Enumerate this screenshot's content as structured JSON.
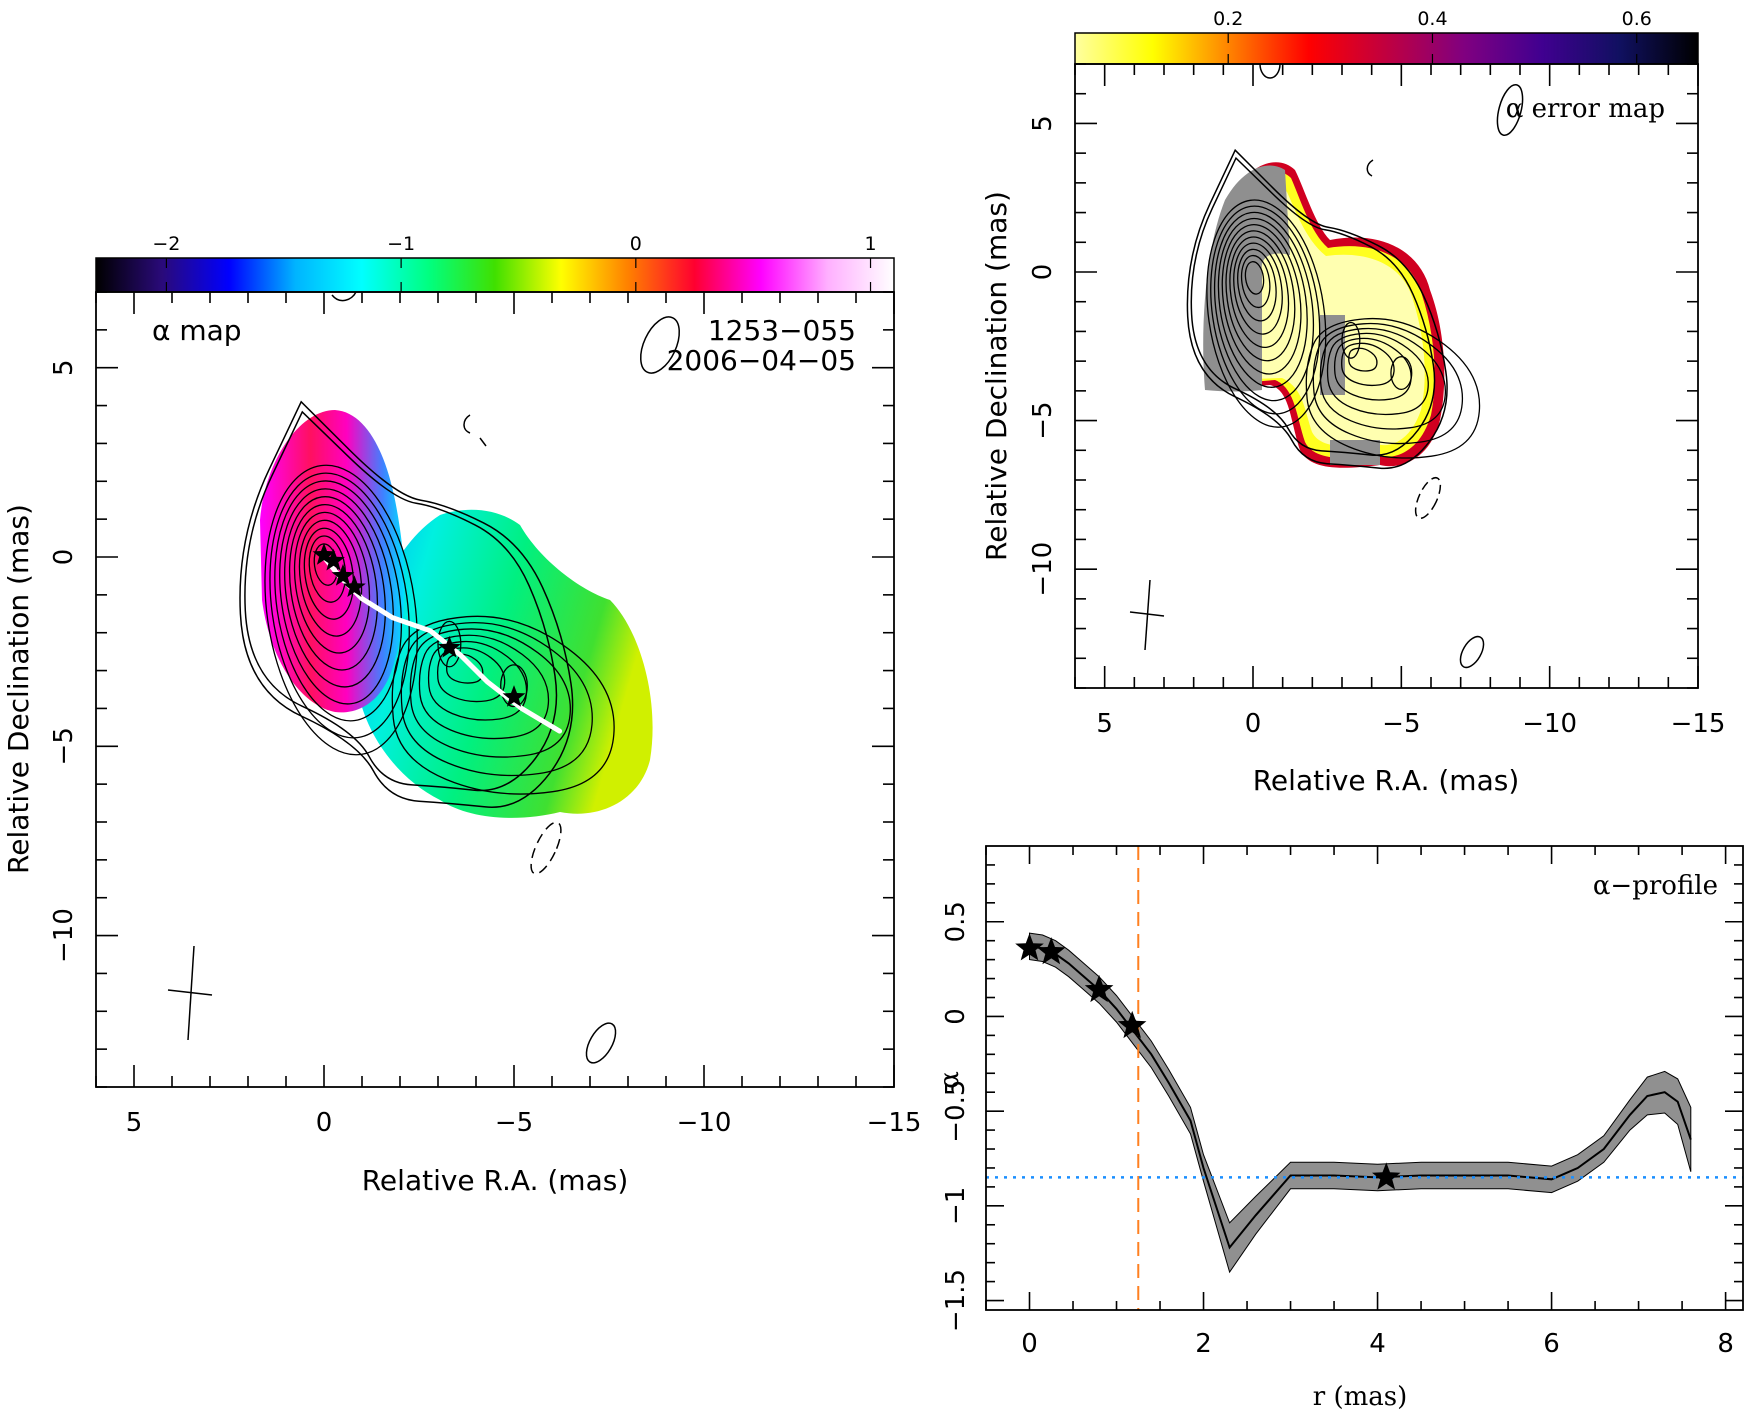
{
  "chart_data": [
    {
      "type": "heatmap",
      "panel": "alpha-map",
      "annotation": "α map",
      "source_name": "1253−055",
      "epoch": "2006−04−05",
      "xlabel": "Relative R.A. (mas)",
      "ylabel": "Relative Declination (mas)",
      "xlim": [
        6,
        -15
      ],
      "ylim": [
        -14,
        7
      ],
      "xticks": [
        5,
        0,
        -5,
        -10,
        -15
      ],
      "xtick_labels": [
        "5",
        "0",
        "−5",
        "−10",
        "−15"
      ],
      "yticks": [
        5,
        0,
        -5,
        -10
      ],
      "ytick_labels": [
        "5",
        "0",
        "−5",
        "−10"
      ],
      "colorbar": {
        "range": [
          -2.3,
          1.1
        ],
        "ticks": [
          -2,
          -1,
          0,
          1
        ],
        "tick_labels": [
          "−2",
          "−1",
          "0",
          "1"
        ],
        "colors": [
          "#000000",
          "#2a0a7a",
          "#0000ff",
          "#00b4ff",
          "#00ffff",
          "#00ff80",
          "#40e000",
          "#ffff00",
          "#ff8000",
          "#ff0030",
          "#ff00ff",
          "#ffb0ff",
          "#ffffff"
        ]
      },
      "stars": [
        [
          0,
          0.05
        ],
        [
          -0.25,
          -0.1
        ],
        [
          -0.5,
          -0.5
        ],
        [
          -0.8,
          -0.8
        ],
        [
          -3.3,
          -2.4
        ],
        [
          -5.0,
          -3.7
        ]
      ],
      "ridge_line": [
        [
          0,
          0
        ],
        [
          -0.4,
          -0.5
        ],
        [
          -1,
          -1.1
        ],
        [
          -1.8,
          -1.6
        ],
        [
          -2.8,
          -1.95
        ],
        [
          -3.6,
          -2.6
        ],
        [
          -4.3,
          -3.3
        ],
        [
          -5.2,
          -4.0
        ],
        [
          -6.2,
          -4.6
        ]
      ]
    },
    {
      "type": "heatmap",
      "panel": "alpha-error-map",
      "annotation": "α error map",
      "xlabel": "Relative R.A. (mas)",
      "ylabel": "Relative Declination (mas)",
      "xlim": [
        6,
        -15
      ],
      "ylim": [
        -14,
        7
      ],
      "xticks": [
        5,
        0,
        -5,
        -10,
        -15
      ],
      "xtick_labels": [
        "5",
        "0",
        "−5",
        "−10",
        "−15"
      ],
      "yticks": [
        5,
        0,
        -5,
        -10
      ],
      "ytick_labels": [
        "5",
        "0",
        "−5",
        "−10"
      ],
      "colorbar": {
        "range": [
          0.05,
          0.66
        ],
        "ticks": [
          0.2,
          0.4,
          0.6
        ],
        "tick_labels": [
          "0.2",
          "0.4",
          "0.6"
        ],
        "colors": [
          "#ffffa0",
          "#ffff00",
          "#ff8000",
          "#ff0000",
          "#c00040",
          "#800080",
          "#400090",
          "#101060",
          "#000000"
        ]
      }
    },
    {
      "type": "line",
      "panel": "alpha-profile",
      "annotation": "α−profile",
      "xlabel": "r (mas)",
      "ylabel": "α",
      "xlim": [
        -0.5,
        8.2
      ],
      "ylim": [
        -1.55,
        0.9
      ],
      "xticks": [
        0,
        2,
        4,
        6,
        8
      ],
      "xtick_labels": [
        "0",
        "2",
        "4",
        "6",
        "8"
      ],
      "yticks": [
        0.5,
        0,
        -0.5,
        -1,
        -1.5
      ],
      "ytick_labels": [
        "0.5",
        "0",
        "−0.5",
        "−1",
        "−1.5"
      ],
      "x": [
        0,
        0.15,
        0.3,
        0.45,
        0.6,
        0.8,
        1.0,
        1.2,
        1.4,
        1.6,
        1.85,
        2.0,
        2.3,
        2.6,
        3.0,
        3.5,
        4.0,
        4.5,
        5.0,
        5.5,
        6.0,
        6.3,
        6.6,
        6.9,
        7.1,
        7.3,
        7.45,
        7.6
      ],
      "alpha": [
        0.37,
        0.36,
        0.33,
        0.28,
        0.22,
        0.14,
        0.04,
        -0.08,
        -0.2,
        -0.35,
        -0.55,
        -0.8,
        -1.22,
        -1.05,
        -0.84,
        -0.84,
        -0.85,
        -0.84,
        -0.84,
        -0.84,
        -0.86,
        -0.8,
        -0.7,
        -0.52,
        -0.42,
        -0.4,
        -0.45,
        -0.65
      ],
      "error": [
        0.07,
        0.07,
        0.07,
        0.07,
        0.07,
        0.07,
        0.07,
        0.07,
        0.07,
        0.07,
        0.07,
        0.07,
        0.13,
        0.1,
        0.07,
        0.07,
        0.07,
        0.07,
        0.07,
        0.07,
        0.07,
        0.07,
        0.07,
        0.08,
        0.1,
        0.11,
        0.12,
        0.17
      ],
      "stars": [
        [
          0,
          0.36
        ],
        [
          0.25,
          0.34
        ],
        [
          0.8,
          0.14
        ],
        [
          1.18,
          -0.05
        ],
        [
          4.1,
          -0.85
        ]
      ],
      "vline_x": 1.25,
      "hline_y": -0.85
    }
  ]
}
